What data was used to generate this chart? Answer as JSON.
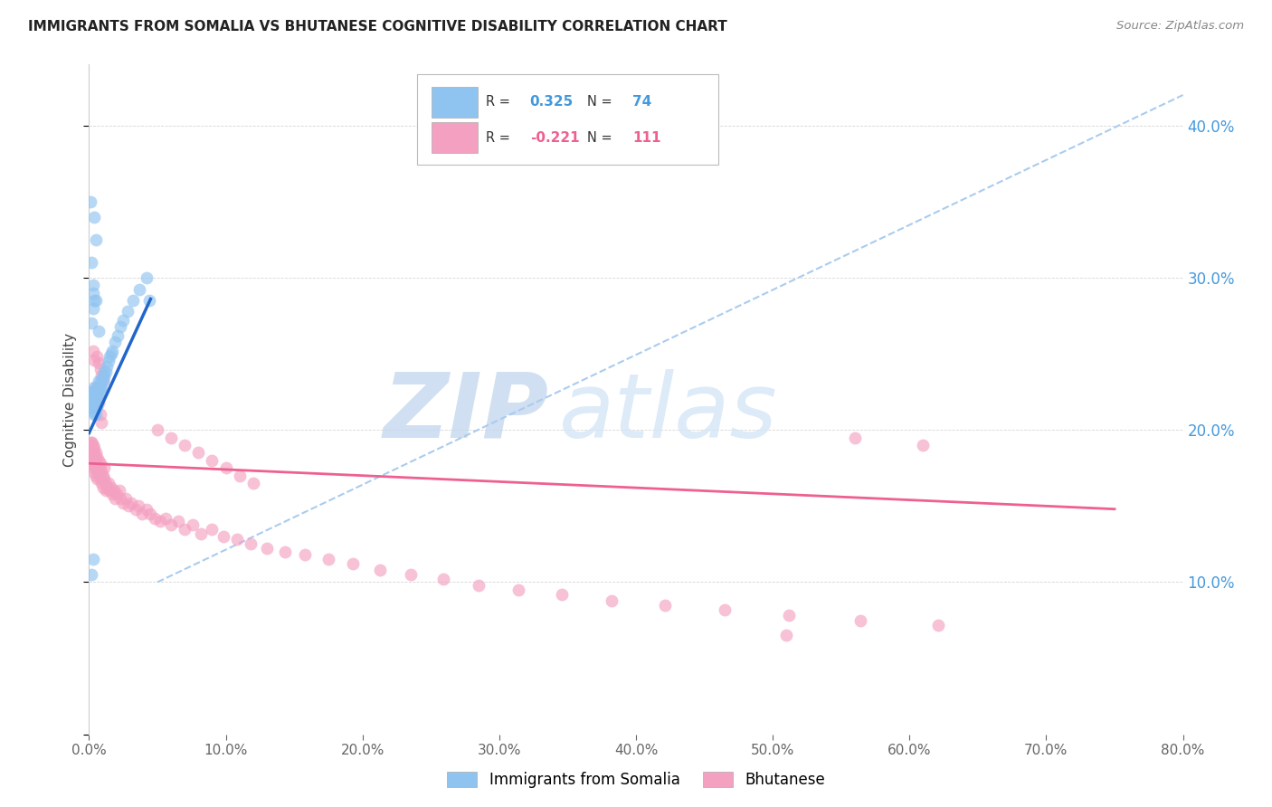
{
  "title": "IMMIGRANTS FROM SOMALIA VS BHUTANESE COGNITIVE DISABILITY CORRELATION CHART",
  "source": "Source: ZipAtlas.com",
  "ylabel": "Cognitive Disability",
  "xlim": [
    0.0,
    0.8
  ],
  "ylim": [
    0.0,
    0.44
  ],
  "somalia_R": 0.325,
  "somalia_N": 74,
  "bhutan_R": -0.221,
  "bhutan_N": 111,
  "somalia_color": "#90C4F0",
  "bhutan_color": "#F4A0C0",
  "somalia_line_color": "#2266CC",
  "bhutan_line_color": "#EE6090",
  "dashed_line_color": "#AACCEE",
  "watermark_zip": "ZIP",
  "watermark_atlas": "atlas",
  "watermark_color_zip": "#C8D8EC",
  "watermark_color_atlas": "#D8E8F4",
  "legend_somalia_label": "Immigrants from Somalia",
  "legend_bhutan_label": "Bhutanese",
  "somalia_x": [
    0.001,
    0.001,
    0.002,
    0.002,
    0.002,
    0.002,
    0.003,
    0.003,
    0.003,
    0.003,
    0.003,
    0.003,
    0.004,
    0.004,
    0.004,
    0.004,
    0.004,
    0.004,
    0.004,
    0.005,
    0.005,
    0.005,
    0.005,
    0.005,
    0.005,
    0.005,
    0.005,
    0.005,
    0.006,
    0.006,
    0.006,
    0.006,
    0.006,
    0.007,
    0.007,
    0.007,
    0.007,
    0.008,
    0.008,
    0.008,
    0.009,
    0.009,
    0.01,
    0.01,
    0.011,
    0.011,
    0.012,
    0.013,
    0.014,
    0.015,
    0.016,
    0.017,
    0.019,
    0.021,
    0.023,
    0.025,
    0.028,
    0.032,
    0.037,
    0.042,
    0.001,
    0.002,
    0.003,
    0.004,
    0.002,
    0.003,
    0.004,
    0.005,
    0.007,
    0.003,
    0.002,
    0.003,
    0.044,
    0.005
  ],
  "somalia_y": [
    0.215,
    0.22,
    0.218,
    0.222,
    0.215,
    0.225,
    0.212,
    0.218,
    0.222,
    0.215,
    0.22,
    0.225,
    0.21,
    0.215,
    0.22,
    0.225,
    0.228,
    0.215,
    0.222,
    0.21,
    0.215,
    0.218,
    0.222,
    0.225,
    0.215,
    0.22,
    0.218,
    0.225,
    0.218,
    0.222,
    0.225,
    0.228,
    0.215,
    0.222,
    0.225,
    0.228,
    0.232,
    0.225,
    0.228,
    0.232,
    0.228,
    0.232,
    0.232,
    0.235,
    0.235,
    0.238,
    0.238,
    0.242,
    0.245,
    0.248,
    0.25,
    0.252,
    0.258,
    0.262,
    0.268,
    0.272,
    0.278,
    0.285,
    0.292,
    0.3,
    0.35,
    0.31,
    0.295,
    0.34,
    0.27,
    0.28,
    0.285,
    0.325,
    0.265,
    0.29,
    0.105,
    0.115,
    0.285,
    0.285
  ],
  "bhutan_x": [
    0.001,
    0.001,
    0.002,
    0.002,
    0.002,
    0.002,
    0.003,
    0.003,
    0.003,
    0.003,
    0.004,
    0.004,
    0.004,
    0.004,
    0.005,
    0.005,
    0.005,
    0.005,
    0.005,
    0.006,
    0.006,
    0.006,
    0.007,
    0.007,
    0.007,
    0.008,
    0.008,
    0.008,
    0.009,
    0.009,
    0.01,
    0.01,
    0.011,
    0.011,
    0.012,
    0.012,
    0.013,
    0.014,
    0.015,
    0.016,
    0.017,
    0.018,
    0.019,
    0.02,
    0.022,
    0.023,
    0.025,
    0.027,
    0.029,
    0.031,
    0.034,
    0.036,
    0.039,
    0.042,
    0.045,
    0.048,
    0.052,
    0.056,
    0.06,
    0.065,
    0.07,
    0.076,
    0.082,
    0.09,
    0.098,
    0.108,
    0.118,
    0.13,
    0.143,
    0.158,
    0.175,
    0.193,
    0.213,
    0.235,
    0.259,
    0.285,
    0.314,
    0.346,
    0.382,
    0.421,
    0.465,
    0.512,
    0.564,
    0.621,
    0.002,
    0.003,
    0.004,
    0.005,
    0.006,
    0.007,
    0.008,
    0.009,
    0.01,
    0.003,
    0.004,
    0.005,
    0.006,
    0.007,
    0.008,
    0.009,
    0.05,
    0.06,
    0.07,
    0.08,
    0.09,
    0.1,
    0.11,
    0.12,
    0.61,
    0.56,
    0.51
  ],
  "bhutan_y": [
    0.19,
    0.185,
    0.188,
    0.182,
    0.192,
    0.178,
    0.186,
    0.18,
    0.19,
    0.175,
    0.183,
    0.177,
    0.188,
    0.172,
    0.18,
    0.175,
    0.185,
    0.17,
    0.178,
    0.175,
    0.182,
    0.168,
    0.176,
    0.172,
    0.18,
    0.174,
    0.168,
    0.178,
    0.172,
    0.165,
    0.17,
    0.162,
    0.168,
    0.175,
    0.165,
    0.16,
    0.162,
    0.165,
    0.16,
    0.162,
    0.158,
    0.16,
    0.155,
    0.158,
    0.16,
    0.155,
    0.152,
    0.155,
    0.15,
    0.152,
    0.148,
    0.15,
    0.145,
    0.148,
    0.145,
    0.142,
    0.14,
    0.142,
    0.138,
    0.14,
    0.135,
    0.138,
    0.132,
    0.135,
    0.13,
    0.128,
    0.125,
    0.122,
    0.12,
    0.118,
    0.115,
    0.112,
    0.108,
    0.105,
    0.102,
    0.098,
    0.095,
    0.092,
    0.088,
    0.085,
    0.082,
    0.078,
    0.075,
    0.072,
    0.192,
    0.186,
    0.18,
    0.175,
    0.248,
    0.244,
    0.24,
    0.236,
    0.232,
    0.252,
    0.246,
    0.228,
    0.223,
    0.218,
    0.21,
    0.205,
    0.2,
    0.195,
    0.19,
    0.185,
    0.18,
    0.175,
    0.17,
    0.165,
    0.19,
    0.195,
    0.065
  ]
}
